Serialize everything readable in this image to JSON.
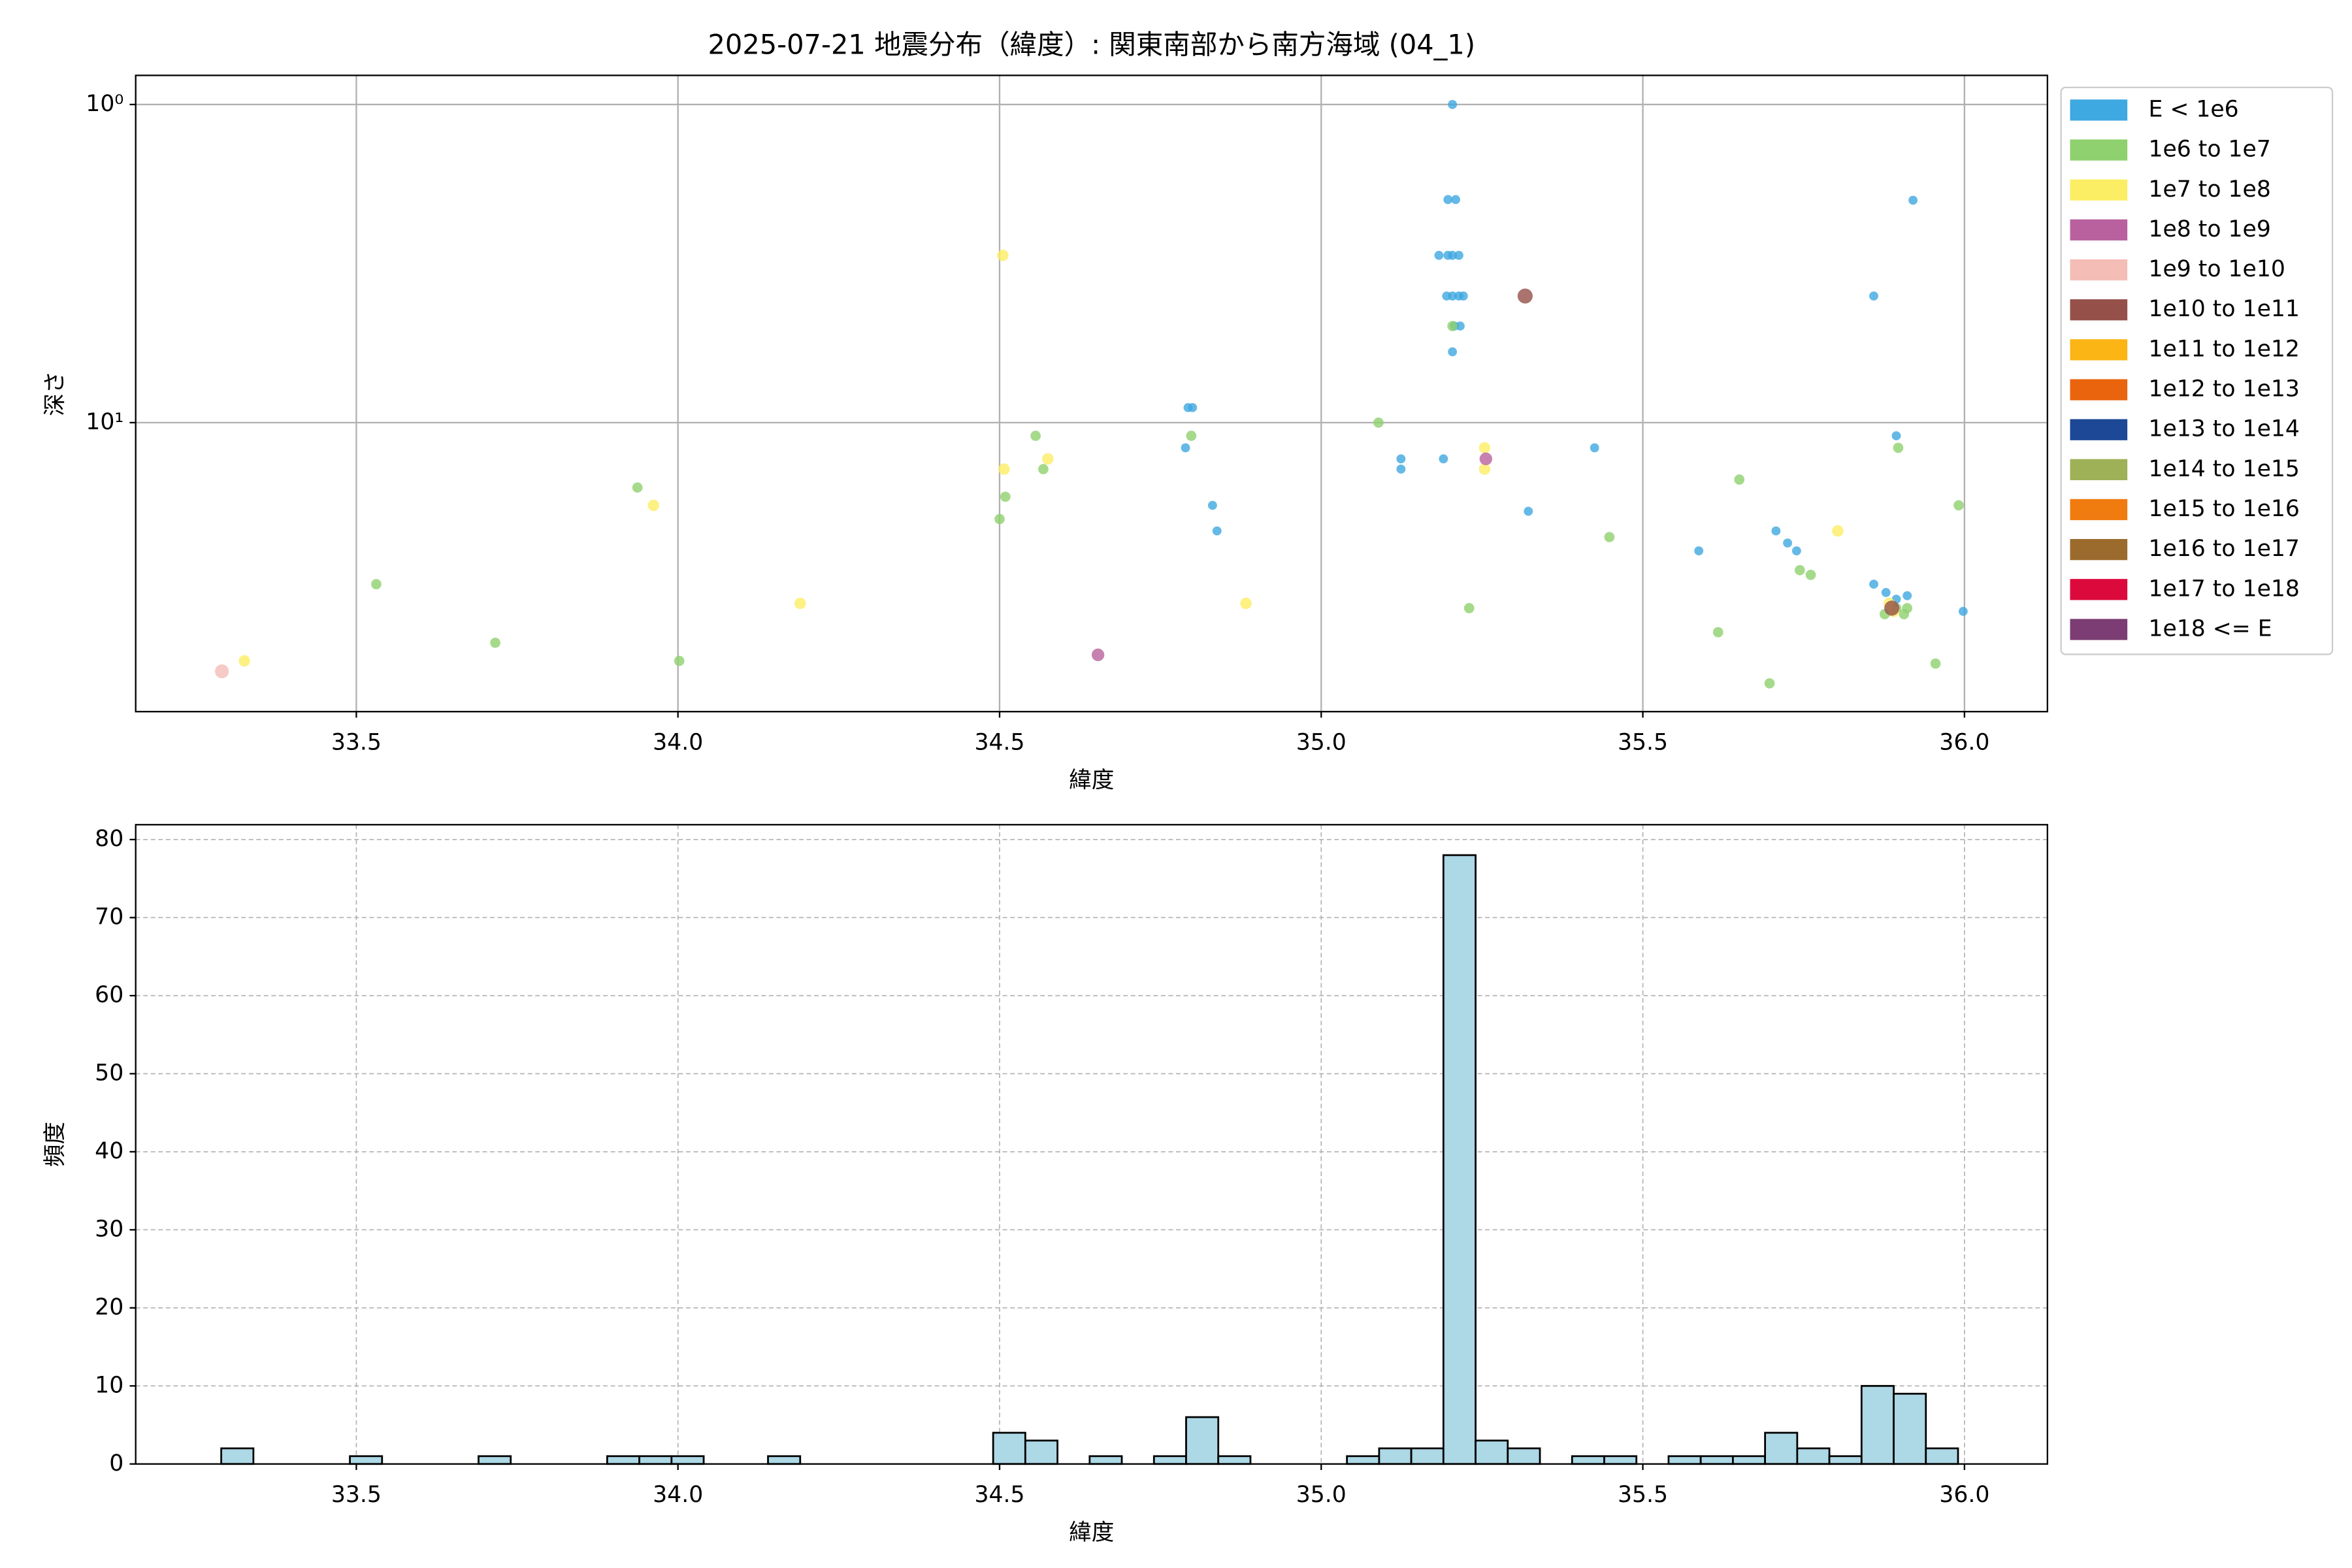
{
  "chart_data": [
    {
      "type": "scatter",
      "title": "2025-07-21 地震分布（緯度）: 関東南部から南方海域 (04_1)",
      "x_label": "緯度",
      "y_label": "深さ",
      "xlim": [
        33.157,
        36.129
      ],
      "xticks": [
        33.5,
        {
          "value": 34,
          "label": "34.0"
        },
        34.5,
        {
          "value": 35,
          "label": "35.0"
        },
        35.5,
        {
          "value": 36,
          "label": "36.0"
        }
      ],
      "ylim": [
        0.81,
        81
      ],
      "y_log": true,
      "y_inverted": true,
      "yticks": [
        {
          "value": 1,
          "label": "10⁰"
        },
        {
          "value": 10,
          "label": "10¹"
        }
      ],
      "grid": true,
      "legend": "outside right",
      "series": [
        {
          "name": "E < 1e6",
          "color": "#3ea8e0",
          "x": [
            35.204,
            35.197,
            35.209,
            35.183,
            35.197,
            35.204,
            35.214,
            35.195,
            35.204,
            35.214,
            35.221,
            35.207,
            35.216,
            35.204,
            35.859,
            35.92,
            34.793,
            34.8,
            34.789,
            35.124,
            35.124,
            35.19,
            35.425,
            34.831,
            34.838,
            35.322,
            35.587,
            35.707,
            35.725,
            35.739,
            35.894,
            35.859,
            35.878,
            35.894,
            35.911,
            35.998
          ],
          "values": [
            1.0,
            1.99,
            1.99,
            2.98,
            2.98,
            2.98,
            2.98,
            4.0,
            4.0,
            4.0,
            4.0,
            4.97,
            4.97,
            5.99,
            4.0,
            2.0,
            8.97,
            8.97,
            12.0,
            13.0,
            14.0,
            13.0,
            12.0,
            18.2,
            21.9,
            19.0,
            25.3,
            21.9,
            23.9,
            25.3,
            11.0,
            32.2,
            34.2,
            35.9,
            35.0,
            39.2
          ]
        },
        {
          "name": "1e6 to 1e7",
          "color": "#8fd16e",
          "x": [
            33.531,
            33.716,
            33.937,
            34.002,
            34.5,
            34.509,
            34.556,
            34.568,
            34.798,
            35.089,
            35.204,
            35.23,
            35.448,
            35.65,
            35.617,
            35.697,
            35.744,
            35.761,
            35.876,
            35.894,
            35.906,
            35.911,
            35.897,
            35.955,
            35.991
          ],
          "values": [
            32.2,
            49.2,
            16.0,
            56.1,
            20.1,
            17.1,
            11.0,
            14.0,
            11.0,
            10.0,
            4.97,
            38.3,
            22.9,
            15.1,
            45.6,
            66.0,
            29.1,
            30.1,
            40.0,
            38.3,
            40.0,
            38.3,
            12.0,
            57.2,
            18.2
          ]
        },
        {
          "name": "1e7 to 1e8",
          "color": "#fcee64",
          "x": [
            33.326,
            33.962,
            34.19,
            34.505,
            34.507,
            34.575,
            34.883,
            35.254,
            35.254,
            35.803,
            35.883,
            35.89
          ],
          "values": [
            56.1,
            18.2,
            37.0,
            2.98,
            14.0,
            13.0,
            37.0,
            12.0,
            14.0,
            21.9,
            37.0,
            39.2
          ]
        },
        {
          "name": "1e8 to 1e9",
          "color": "#b9619e",
          "x": [
            34.653,
            35.256
          ],
          "values": [
            53.7,
            13.0
          ]
        },
        {
          "name": "1e9 to 1e10",
          "color": "#f4bdb6",
          "x": [
            33.291
          ],
          "values": [
            60.5
          ]
        },
        {
          "name": "1e10 to 1e11",
          "color": "#95504a",
          "x": [
            35.317,
            35.887
          ],
          "values": [
            4.0,
            38.3
          ]
        },
        {
          "name": "1e11 to 1e12",
          "color": "#fbb515",
          "x": [],
          "values": []
        },
        {
          "name": "1e12 to 1e13",
          "color": "#e9640d",
          "x": [],
          "values": []
        },
        {
          "name": "1e13 to 1e14",
          "color": "#1c4895",
          "x": [],
          "values": []
        },
        {
          "name": "1e14 to 1e15",
          "color": "#9eb157",
          "x": [],
          "values": []
        },
        {
          "name": "1e15 to 1e16",
          "color": "#f07b0f",
          "x": [],
          "values": []
        },
        {
          "name": "1e16 to 1e17",
          "color": "#9a6b2c",
          "x": [],
          "values": []
        },
        {
          "name": "1e17 to 1e18",
          "color": "#dc0a3c",
          "x": [],
          "values": []
        },
        {
          "name": "1e18 <= E",
          "color": "#7b3d73",
          "x": [],
          "values": []
        }
      ]
    },
    {
      "type": "histogram",
      "x_label": "緯度",
      "y_label": "頻度",
      "xlim": [
        33.157,
        36.129
      ],
      "xticks": [
        33.5,
        {
          "value": 34,
          "label": "34.0"
        },
        34.5,
        {
          "value": 35,
          "label": "35.0"
        },
        35.5,
        {
          "value": 36,
          "label": "36.0"
        }
      ],
      "ylim": [
        0,
        81.9
      ],
      "yticks": [
        0,
        10,
        20,
        30,
        40,
        50,
        60,
        70,
        80
      ],
      "grid": true,
      "color": "#add8e6",
      "edgecolor": "#000000",
      "bins": [
        33.29,
        33.34,
        33.39,
        33.44,
        33.49,
        33.54,
        33.59,
        33.64,
        33.69,
        33.74,
        33.79,
        33.84,
        33.89,
        33.94,
        33.99,
        34.04,
        34.09,
        34.14,
        34.19,
        34.24,
        34.29,
        34.34,
        34.39,
        34.44,
        34.49,
        34.54,
        34.59,
        34.64,
        34.69,
        34.74,
        34.79,
        34.84,
        34.89,
        34.94,
        34.99,
        35.04,
        35.09,
        35.14,
        35.19,
        35.24,
        35.29,
        35.34,
        35.39,
        35.44,
        35.49,
        35.54,
        35.59,
        35.64,
        35.69,
        35.74,
        35.79,
        35.84,
        35.89,
        35.94,
        35.99
      ],
      "values": [
        2,
        0,
        0,
        0,
        1,
        0,
        0,
        0,
        1,
        0,
        0,
        0,
        1,
        1,
        1,
        0,
        0,
        1,
        0,
        0,
        0,
        0,
        0,
        0,
        4,
        3,
        0,
        1,
        0,
        1,
        6,
        1,
        0,
        0,
        0,
        1,
        2,
        2,
        78,
        3,
        2,
        0,
        1,
        1,
        0,
        1,
        1,
        1,
        4,
        2,
        1,
        10,
        9,
        2
      ]
    }
  ]
}
